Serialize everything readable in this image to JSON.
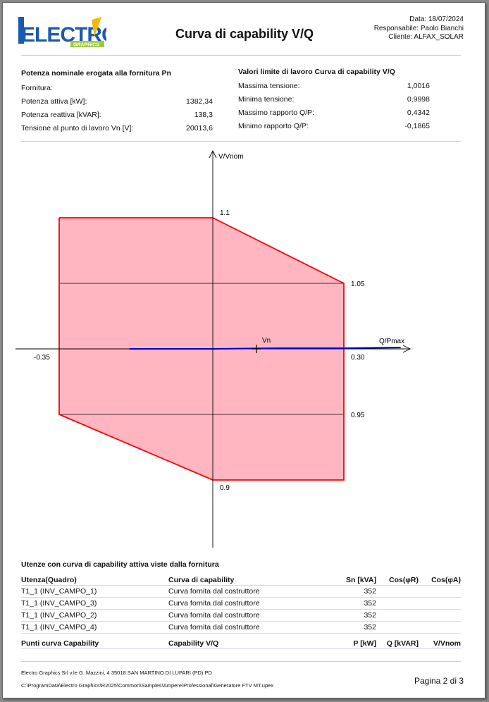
{
  "header": {
    "logo_text": "ELECTRO",
    "logo_sub": "GRAPHICS",
    "title": "Curva di capability V/Q",
    "date": "Data: 18/07/2024",
    "responsible": "Responsabile: Paolo Bianchi",
    "client": "Cliente: ALFAX_SOLAR"
  },
  "nominal": {
    "title": "Potenza nominale erogata alla fornitura Pn",
    "subtitle": "Fornitura:",
    "rows": [
      {
        "label": "Potenza attiva [kW]:",
        "value": "1382,34"
      },
      {
        "label": "Potenza reattiva [kVAR]:",
        "value": "138,3"
      },
      {
        "label": "Tensione al punto di lavoro Vn [V]:",
        "value": "20013,6"
      }
    ]
  },
  "limits": {
    "title": "Valori limite di lavoro Curva di capability V/Q",
    "rows": [
      {
        "label": "Massima tensione:",
        "value": "1,0016"
      },
      {
        "label": "Minima tensione:",
        "value": "0,9998"
      },
      {
        "label": "Massimo rapporto Q/P:",
        "value": "0,4342"
      },
      {
        "label": "Minimo rapporto Q/P:",
        "value": "-0,1865"
      }
    ]
  },
  "chart_data": {
    "type": "area",
    "xlabel": "Q/Pmax",
    "ylabel": "V/Vnom",
    "tick_labels": {
      "x_min": "-0.35",
      "x_max": "0.30",
      "y_max": "1.1",
      "y_upper": "1.05",
      "y_lower": "0.95",
      "y_min": "0.9"
    },
    "area_polygon": [
      {
        "x": -0.35,
        "y": 1.1
      },
      {
        "x": 0.0,
        "y": 1.1
      },
      {
        "x": 0.3,
        "y": 1.05
      },
      {
        "x": 0.3,
        "y": 0.9
      },
      {
        "x": 0.0,
        "y": 0.9
      },
      {
        "x": 0.0,
        "y": 0.9
      },
      {
        "x": -0.35,
        "y": 0.95
      }
    ],
    "area_points_path": [
      {
        "x": -0.35,
        "y": 1.1
      },
      {
        "x": 0.0,
        "y": 1.1
      },
      {
        "x": 0.3,
        "y": 1.05
      },
      {
        "x": 0.3,
        "y": 0.9
      },
      {
        "x": 0.0,
        "y": 0.9
      },
      {
        "x": -0.35,
        "y": 0.95
      }
    ],
    "gridlines_y": [
      1.05,
      0.95
    ],
    "working_line": {
      "x": [
        -0.1865,
        0.4342
      ],
      "y": [
        0.9998,
        1.0016
      ]
    },
    "working_point": {
      "label": "Vn",
      "x": 0.1,
      "y": 1.0
    },
    "xlim": [
      -0.35,
      0.3
    ],
    "ylim": [
      0.9,
      1.1
    ],
    "colors": {
      "fill": "#ffb6c1",
      "border": "#ff0000",
      "line": "#0000cc"
    }
  },
  "users_table": {
    "title": "Utenze con curva di capability attiva viste dalla fornitura",
    "headers": [
      "Utenza(Quadro)",
      "Curva di capability",
      "Sn [kVA]",
      "Cos(φR)",
      "Cos(φA)"
    ],
    "rows": [
      [
        "T1_1 (INV_CAMPO_1)",
        "Curva fornita dal costruttore",
        "352",
        "",
        ""
      ],
      [
        "T1_1 (INV_CAMPO_3)",
        "Curva fornita dal costruttore",
        "352",
        "",
        ""
      ],
      [
        "T1_1 (INV_CAMPO_2)",
        "Curva fornita dal costruttore",
        "352",
        "",
        ""
      ],
      [
        "T1_1 (INV_CAMPO_4)",
        "Curva fornita dal costruttore",
        "352",
        "",
        ""
      ]
    ]
  },
  "points_table": {
    "headers": [
      "Punti curva Capability",
      "Capability V/Q",
      "P [kW]",
      "Q [kVAR]",
      "V/Vnom"
    ]
  },
  "footer": {
    "company": "Electro Graphics Srl   v.le G. Mazzini, 4  35018  SAN MARTINO DI LUPARI (PD)  PD",
    "path": "C:\\ProgramData\\Electro Graphics\\R2025\\Common\\Samples\\Ampere\\Professional\\Generatore FTV MT.upex",
    "page": "Pagina 2 di 3"
  }
}
